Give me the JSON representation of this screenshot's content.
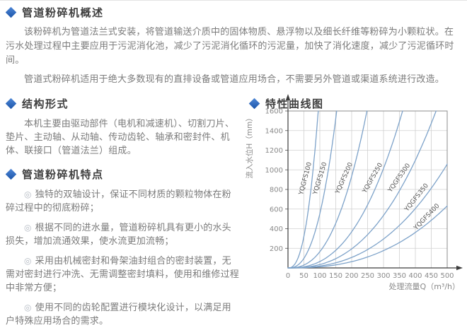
{
  "accent_color": "#2e63b5",
  "curve_color": "#7da2c9",
  "sections": {
    "overview": {
      "title": "管道粉碎机概述",
      "paragraphs": [
        "该粉碎机为管道法兰式安装，将管道输送介质中的固体物质、悬浮物以及细长纤维等粉碎为小颗粒状。在污水处理过程中主要应用于污泥消化池，减少了污泥消化循环的污泥量，加快了消化速度，减少了污泥循环时间。",
        "管道式粉碎机适用于绝大多数现有的直排设备或管道应用场合，不需要另外管道或渠道系统进行改造。"
      ]
    },
    "structure": {
      "title": "结构形式",
      "paragraphs": [
        "本机主要由驱动部件（电机和减速机）、切割刀片、垫片、主动轴、从动轴、传动齿轮、轴承和密封件、机体、联接口（管道法兰）组成。"
      ]
    },
    "features": {
      "title": "管道粉碎机特点",
      "bullet_glyph": "◎",
      "items": [
        "独特的双轴设计，保证不同材质的颗粒物体在粉碎过程中的彻底粉碎；",
        "根据不同的进水量，管道粉碎机具有更小的水头损失，增加流通效果，使水流更加流畅；",
        "采用由机械密封和骨架油封组合的密封装置，无需对密封进行冲洗、无需调整密封填料，使用和维修过程中非常方便；",
        "使用不同的齿轮配置进行模块化设计，以满足用户特殊应用场合的需求。"
      ]
    },
    "curves": {
      "title": "特性曲线图"
    }
  },
  "chart_data": {
    "type": "line",
    "title": "特性曲线图",
    "xlabel": "处理流量Q（m³/h）",
    "ylabel": "流入水位H（mm）",
    "xlim": [
      0,
      500
    ],
    "ylim": [
      0,
      1600
    ],
    "x_ticks": [
      0,
      50,
      100,
      150,
      200,
      250,
      300,
      350,
      400,
      450,
      500
    ],
    "y_ticks": [
      200,
      400,
      600,
      800,
      1000,
      1200,
      1400,
      1600
    ],
    "grid": true,
    "legend_position": "labels-on-curves",
    "curve_model": "H = 1600 × (Q / q_1600)^2.5  (head loss curves rising from origin)",
    "curve_exponent": 2.5,
    "series": [
      {
        "name": "YQGFS100",
        "q_1600": 95,
        "note": "reaches H=1600mm at Q≈95 m³/h"
      },
      {
        "name": "YQGFS150",
        "q_1600": 153,
        "note": "reaches H=1600mm at Q≈153 m³/h"
      },
      {
        "name": "YQGFS200",
        "q_1600": 248,
        "note": "reaches H=1600mm at Q≈248 m³/h"
      },
      {
        "name": "YQGFS250",
        "q_1600": 360,
        "note": "reaches H=1600mm at Q≈360 m³/h"
      },
      {
        "name": "YQGFS300",
        "q_1600": 465,
        "note": "reaches H=1600mm at Q≈465 m³/h"
      },
      {
        "name": "YQGFS350",
        "q_1600": 590,
        "note": "H≈1100mm at Q=500 m³/h"
      },
      {
        "name": "YQGFS400",
        "q_1600": 725,
        "note": "H≈630mm at Q=500 m³/h"
      }
    ]
  }
}
